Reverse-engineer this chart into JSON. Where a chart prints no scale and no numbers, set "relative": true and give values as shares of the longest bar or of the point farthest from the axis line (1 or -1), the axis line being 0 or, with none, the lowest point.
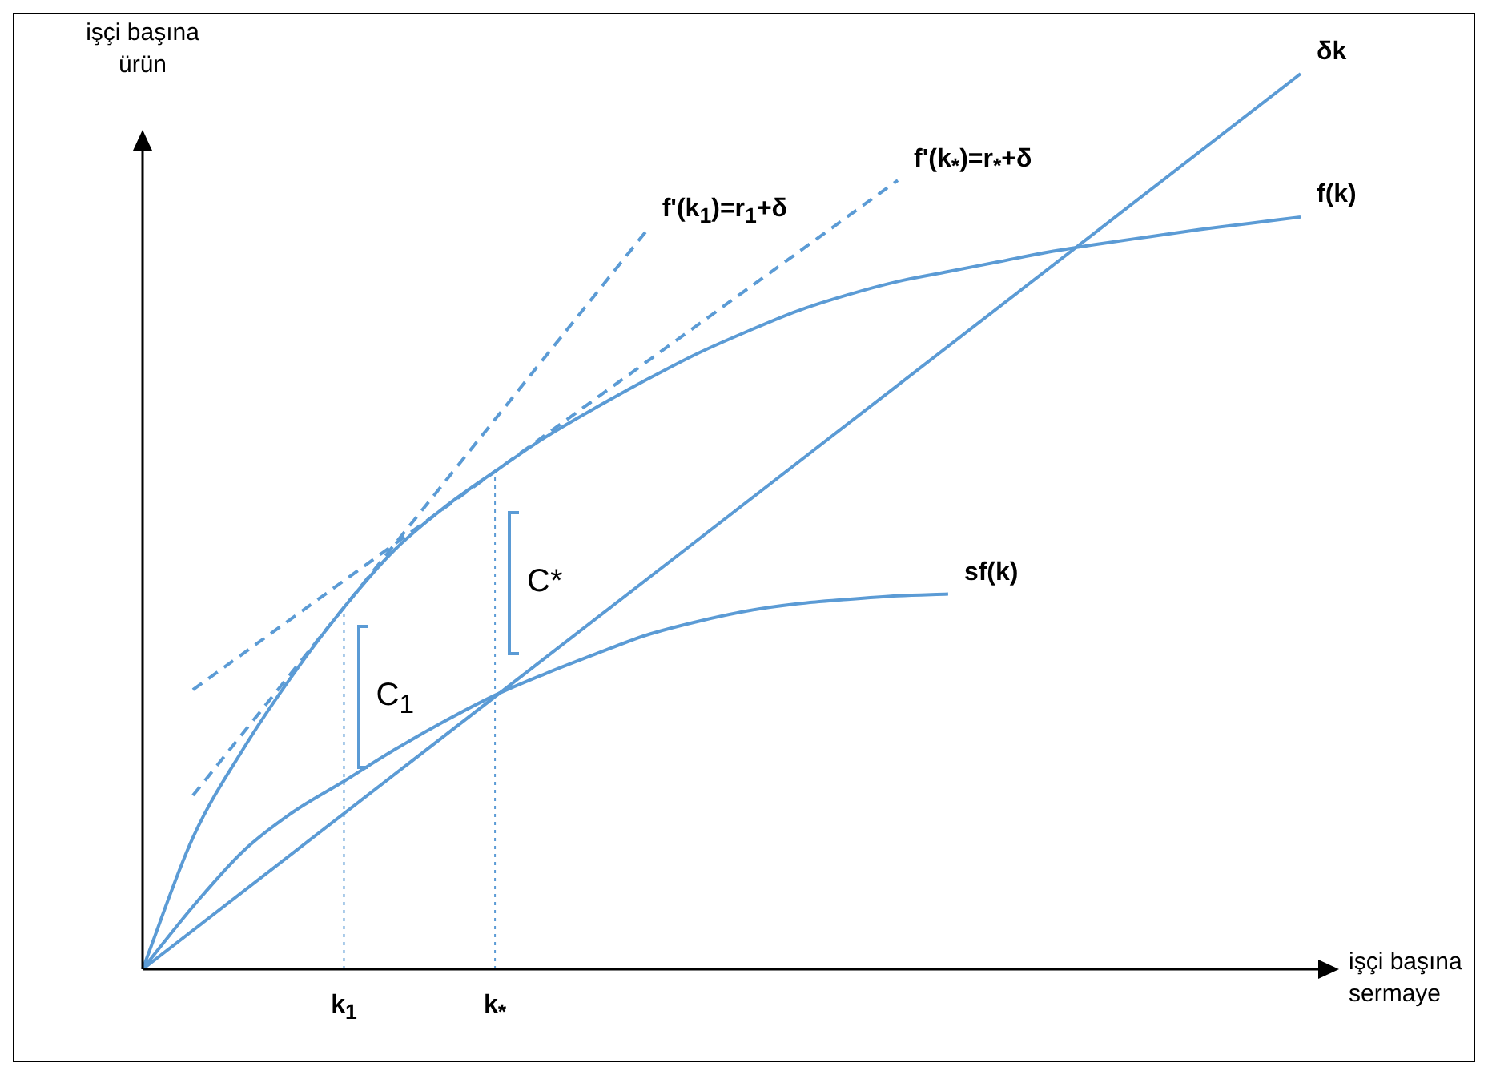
{
  "chart_data": {
    "type": "line",
    "relative": true,
    "xlabel": "işçi başına sermaye",
    "ylabel": "işçi başına ürün",
    "marker": "none",
    "legend": false,
    "categories": [
      null,
      null,
      null,
      null,
      "k$_{1}$",
      null,
      null,
      "k$_{*}$",
      null,
      null,
      null,
      null,
      null,
      null,
      null,
      null,
      null,
      null,
      null,
      null,
      null,
      null,
      null,
      null
    ],
    "series": [
      {
        "name": "δk",
        "color": "#5b9bd5",
        "values": [
          0,
          null,
          null,
          null,
          null,
          null,
          null,
          null,
          null,
          null,
          null,
          null,
          null,
          null,
          null,
          null,
          null,
          null,
          null,
          null,
          null,
          null,
          null,
          1
        ]
      },
      {
        "name": "f(k)",
        "color": "#5b9bd5",
        "values": [
          0,
          0.147,
          0.246,
          0.33,
          0.404,
          0.468,
          0.516,
          0.556,
          0.594,
          0.627,
          0.658,
          0.687,
          0.712,
          0.735,
          0.753,
          0.768,
          0.779,
          0.79,
          0.801,
          0.81,
          0.818,
          0.826,
          0.833,
          0.84
        ]
      },
      {
        "name": "sf(k)",
        "color": "#5b9bd5",
        "values": [
          0,
          0.07,
          0.132,
          0.176,
          0.21,
          0.245,
          0.277,
          0.306,
          0.33,
          0.352,
          0.373,
          0.388,
          0.4,
          0.408,
          0.413,
          0.417,
          0.419,
          null,
          null,
          null,
          null,
          null,
          null,
          null
        ]
      },
      {
        "name": "f'(k$_{1}$)=r$_{1}$+δ",
        "color": "#5b9bd5",
        "line_style": "dashed",
        "values": [
          null,
          0.194,
          null,
          null,
          null,
          null,
          null,
          null,
          null,
          null,
          0.824,
          null,
          null,
          null,
          null,
          null,
          null,
          null,
          null,
          null,
          null,
          null,
          null,
          null
        ]
      },
      {
        "name": "f'(k$_{*}$)=r$_{*}$+δ",
        "color": "#5b9bd5",
        "line_style": "dashed",
        "values": [
          null,
          0.312,
          null,
          null,
          null,
          null,
          null,
          null,
          null,
          null,
          null,
          null,
          null,
          null,
          null,
          0.881,
          null,
          null,
          null,
          null,
          null,
          null,
          null,
          null
        ]
      }
    ],
    "ref_lines": [
      {
        "axis": "x",
        "value": "k$_{1}$",
        "color": "#5b9bd5",
        "line_style": "dotted"
      },
      {
        "axis": "x",
        "value": "k$_{*}$",
        "color": "#5b9bd5",
        "line_style": "dotted"
      }
    ],
    "annotations": [
      {
        "text": "C$_{1}$",
        "x": "k$_{1}$",
        "y": 0.305
      },
      {
        "text": "C*",
        "x": "k$_{*}$",
        "y": 0.431
      }
    ]
  }
}
